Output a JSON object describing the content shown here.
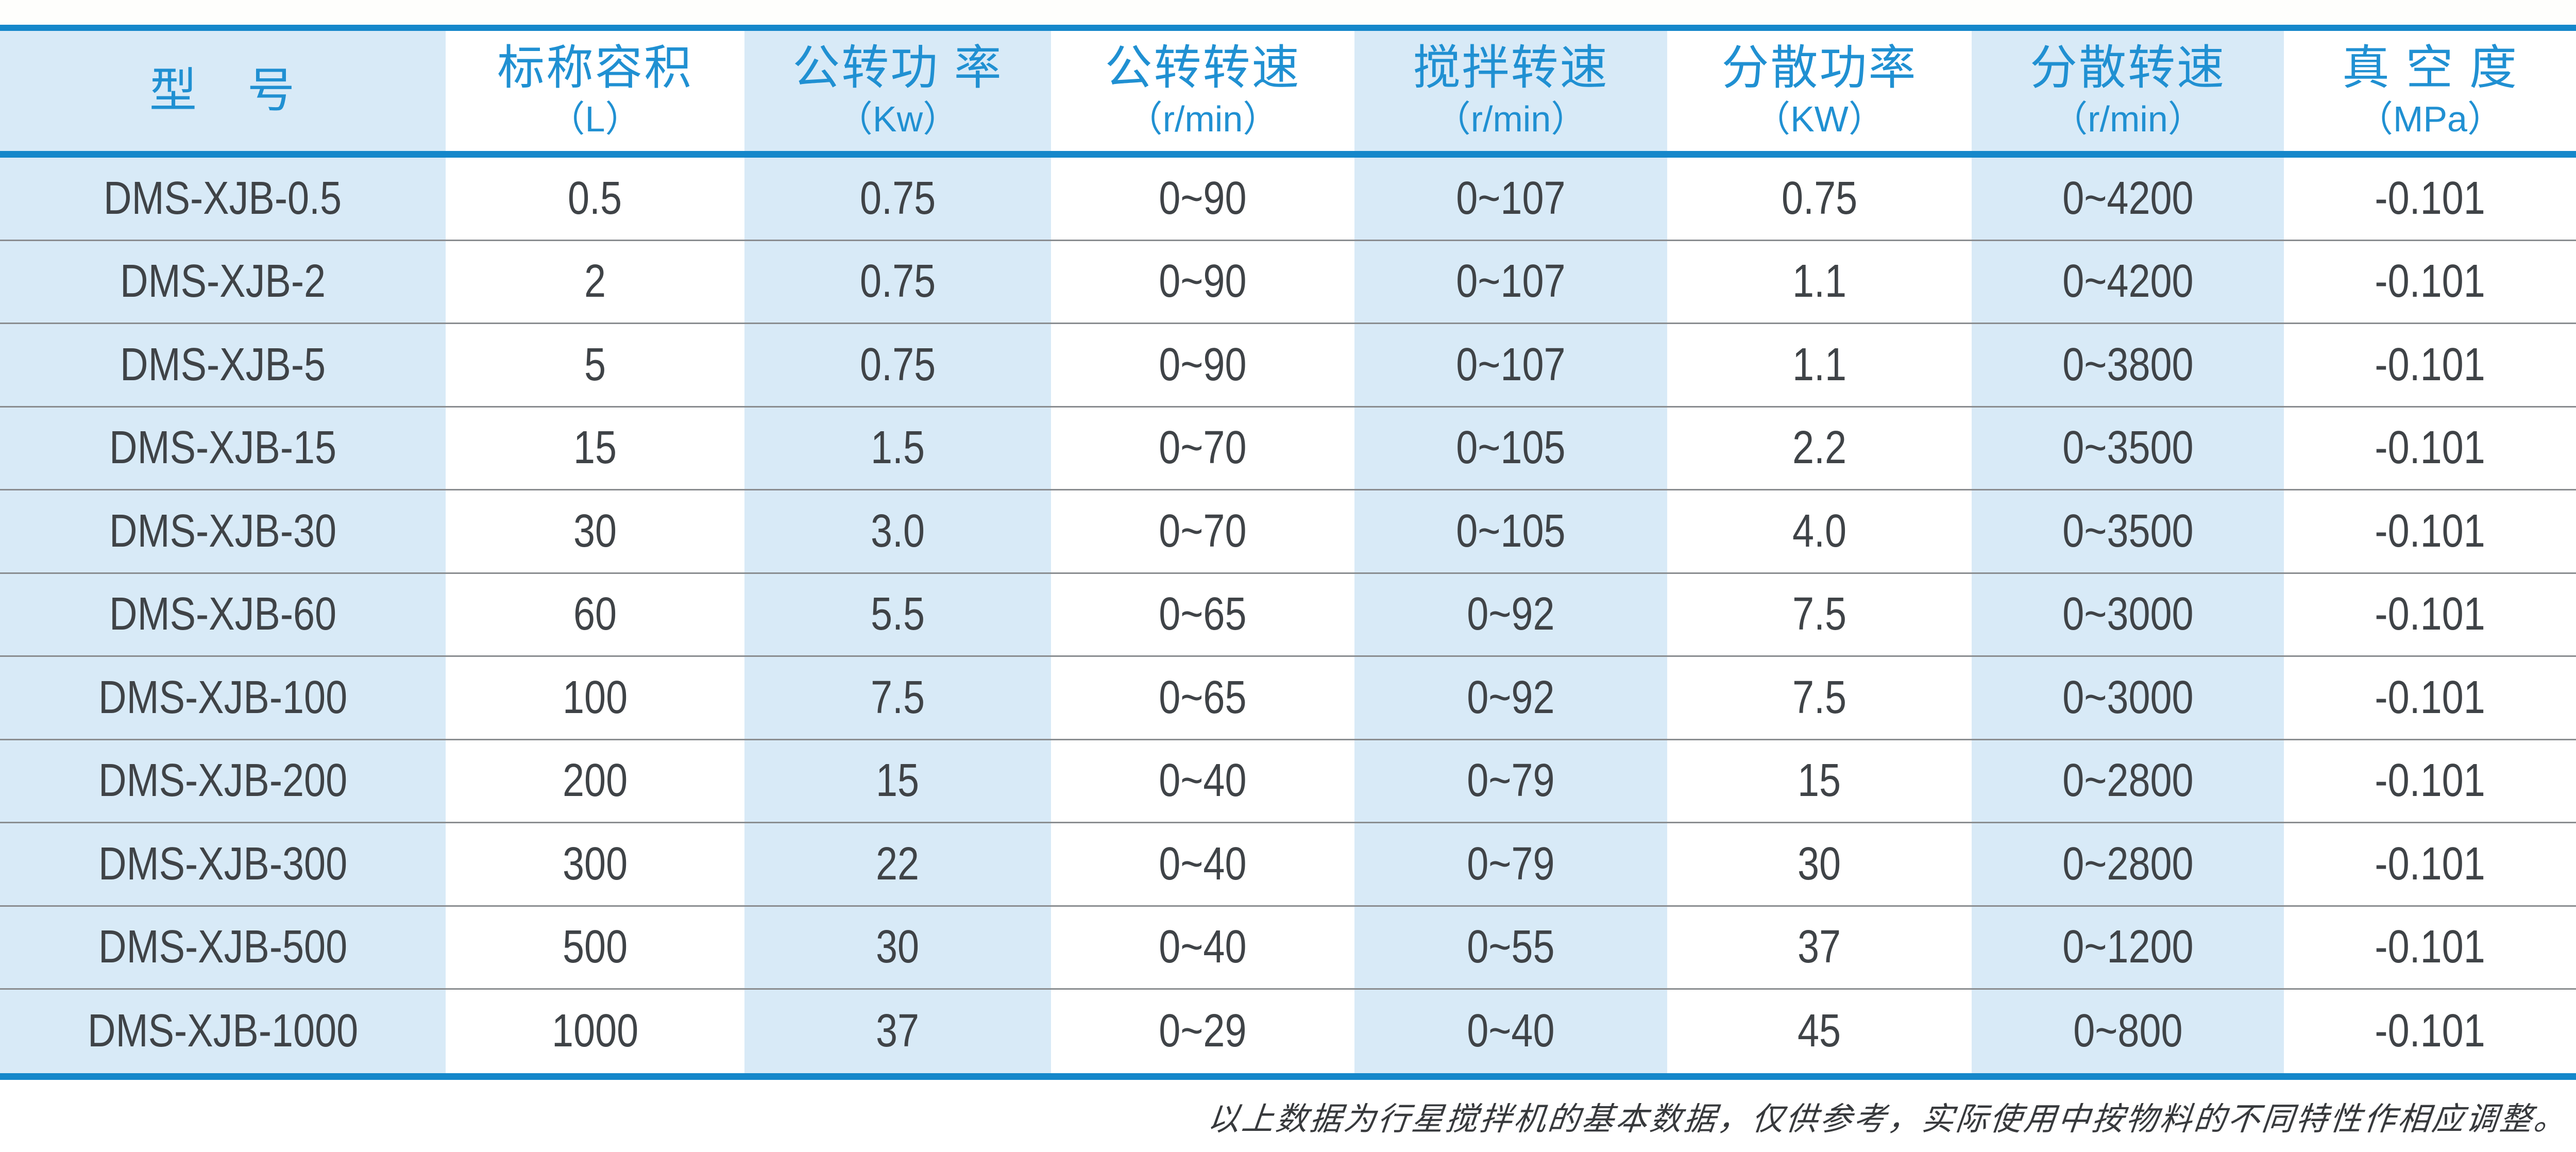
{
  "colors": {
    "accent_blue": "#1587ca",
    "header_text_blue": "#2090d2",
    "column_light_blue": "#d8eaf7",
    "data_text": "#3f4347",
    "row_separator": "#8a8d90"
  },
  "table": {
    "headers": [
      {
        "title": "型　号",
        "unit": ""
      },
      {
        "title": "标称容积",
        "unit": "（L）"
      },
      {
        "title": "公转功 率",
        "unit": "（Kw）"
      },
      {
        "title": "公转转速",
        "unit": "（r/min）"
      },
      {
        "title": "搅拌转速",
        "unit": "（r/min）"
      },
      {
        "title": "分散功率",
        "unit": "（KW）"
      },
      {
        "title": "分散转速",
        "unit": "（r/min）"
      },
      {
        "title": "真 空 度",
        "unit": "（MPa）"
      }
    ],
    "rows": [
      [
        "DMS-XJB-0.5",
        "0.5",
        "0.75",
        "0~90",
        "0~107",
        "0.75",
        "0~4200",
        "-0.101"
      ],
      [
        "DMS-XJB-2",
        "2",
        "0.75",
        "0~90",
        "0~107",
        "1.1",
        "0~4200",
        "-0.101"
      ],
      [
        "DMS-XJB-5",
        "5",
        "0.75",
        "0~90",
        "0~107",
        "1.1",
        "0~3800",
        "-0.101"
      ],
      [
        "DMS-XJB-15",
        "15",
        "1.5",
        "0~70",
        "0~105",
        "2.2",
        "0~3500",
        "-0.101"
      ],
      [
        "DMS-XJB-30",
        "30",
        "3.0",
        "0~70",
        "0~105",
        "4.0",
        "0~3500",
        "-0.101"
      ],
      [
        "DMS-XJB-60",
        "60",
        "5.5",
        "0~65",
        "0~92",
        "7.5",
        "0~3000",
        "-0.101"
      ],
      [
        "DMS-XJB-100",
        "100",
        "7.5",
        "0~65",
        "0~92",
        "7.5",
        "0~3000",
        "-0.101"
      ],
      [
        "DMS-XJB-200",
        "200",
        "15",
        "0~40",
        "0~79",
        "15",
        "0~2800",
        "-0.101"
      ],
      [
        "DMS-XJB-300",
        "300",
        "22",
        "0~40",
        "0~79",
        "30",
        "0~2800",
        "-0.101"
      ],
      [
        "DMS-XJB-500",
        "500",
        "30",
        "0~40",
        "0~55",
        "37",
        "0~1200",
        "-0.101"
      ],
      [
        "DMS-XJB-1000",
        "1000",
        "37",
        "0~29",
        "0~40",
        "45",
        "0~800",
        "-0.101"
      ]
    ]
  },
  "footer": {
    "note": "以上数据为行星搅拌机的基本数据，仅供参考，实际使用中按物料的不同特性作相应调整。"
  }
}
